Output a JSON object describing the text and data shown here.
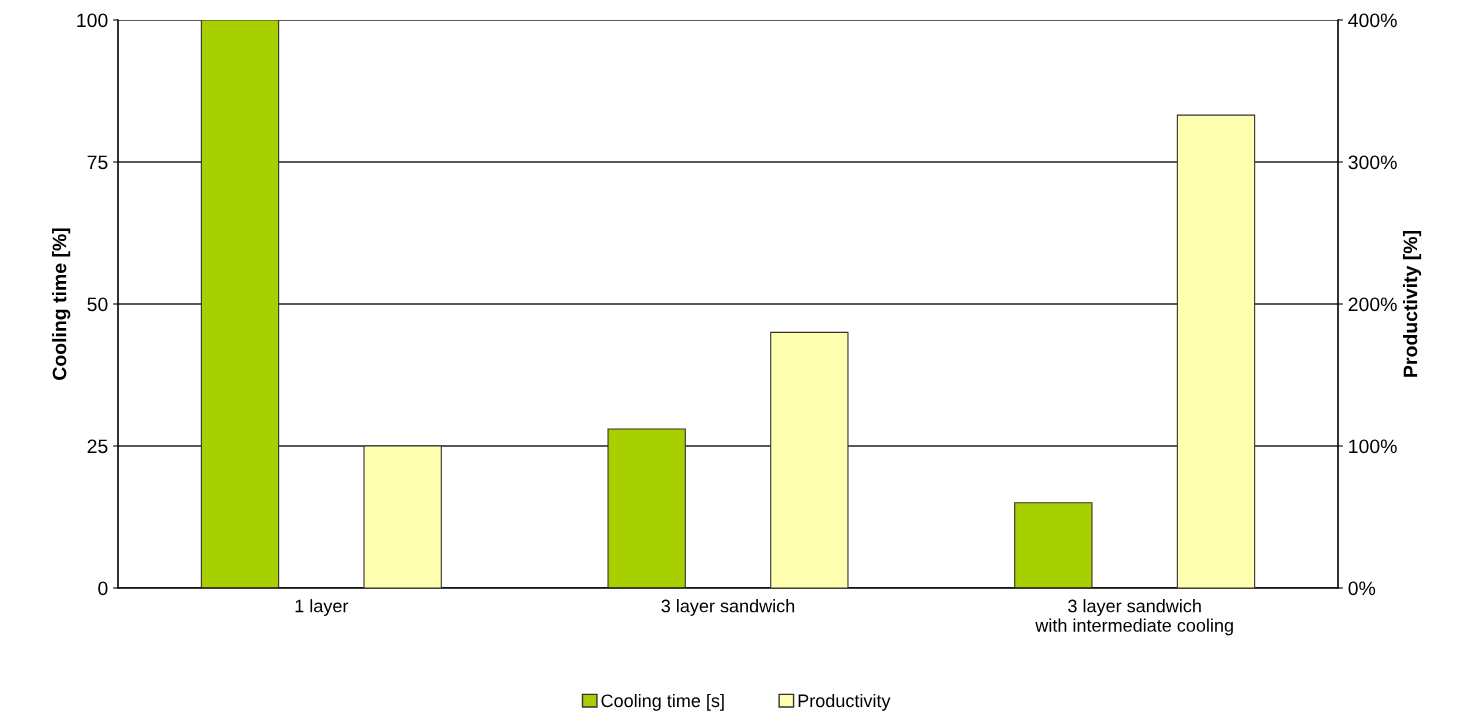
{
  "chart_data": {
    "type": "bar",
    "categories": [
      "1 layer",
      "3 layer sandwich",
      "3 layer sandwich\nwith intermediate cooling"
    ],
    "ylabel": "Cooling time [%]",
    "y2label": "Productivity [%]",
    "series": [
      {
        "name": "Cooling time [s]",
        "color": "#a8d000",
        "values": [
          100,
          28,
          15
        ]
      },
      {
        "name": "Productivity",
        "color": "#ffffb0",
        "values": [
          100,
          180,
          333
        ],
        "axis": "y2"
      }
    ],
    "ylim": [
      0,
      100
    ],
    "yticks": [
      0,
      25,
      50,
      75,
      100
    ],
    "y2lim": [
      0,
      400
    ],
    "y2ticks": [
      {
        "value": 0,
        "label": "0%"
      },
      {
        "value": 100,
        "label": "100%"
      },
      {
        "value": 200,
        "label": "200%"
      },
      {
        "value": 300,
        "label": "300%"
      },
      {
        "value": 400,
        "label": "400%"
      }
    ],
    "grid": "y",
    "legend": "bottom"
  }
}
